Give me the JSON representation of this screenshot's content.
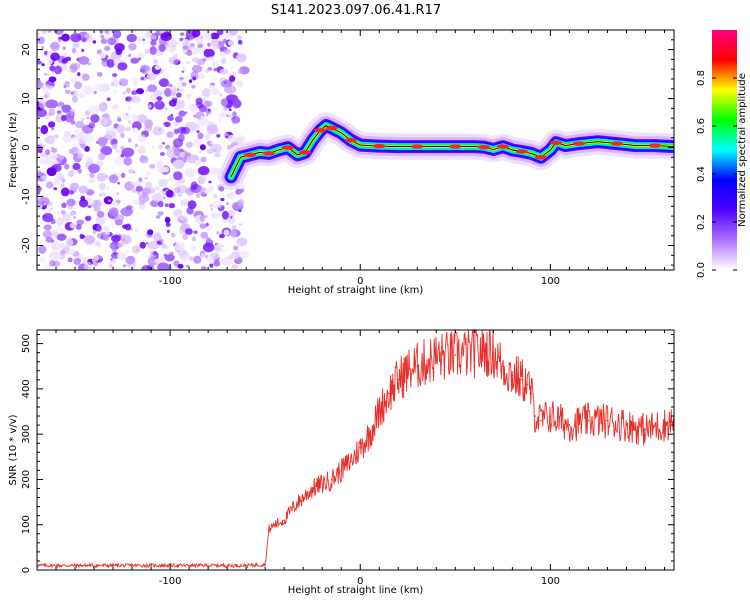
{
  "title": "S141.2023.097.06.41.R17",
  "chart_data": [
    {
      "type": "heatmap",
      "xlabel": "Height of straight line (km)",
      "ylabel": "Frequency (Hz)",
      "xlim": [
        -170,
        165
      ],
      "ylim": [
        -25,
        24
      ],
      "x_ticks": [
        -100,
        0,
        100
      ],
      "y_ticks": [
        -20,
        -10,
        0,
        10,
        20
      ],
      "colorbar": {
        "label": "Normalized spectral amplitude",
        "ticks": [
          "0.0",
          "0.2",
          "0.4",
          "0.6",
          "0.8"
        ],
        "range": [
          0,
          1
        ],
        "colors": [
          "#ffffff",
          "#b070ff",
          "#5000ff",
          "#0000ff",
          "#00ffff",
          "#00ff00",
          "#ffff00",
          "#ff0000",
          "#ff0080"
        ]
      },
      "noise_region": {
        "x_range": [
          -170,
          -63
        ]
      },
      "ridge": {
        "x": [
          -68,
          -63,
          -58,
          -53,
          -48,
          -43,
          -38,
          -33,
          -29,
          -25,
          -21,
          -18,
          -15,
          -10,
          -5,
          0,
          10,
          20,
          30,
          40,
          50,
          60,
          65,
          70,
          75,
          80,
          85,
          90,
          95,
          100,
          103,
          108,
          115,
          125,
          135,
          145,
          155,
          165
        ],
        "y": [
          -6,
          -2,
          -1.5,
          -1,
          -1.2,
          -0.5,
          0,
          -1.5,
          -1,
          1.5,
          3.5,
          4.5,
          4,
          3,
          1.5,
          0.5,
          0.3,
          0.2,
          0.2,
          0.2,
          0.2,
          0.2,
          0.1,
          -0.4,
          0.2,
          -0.5,
          -0.8,
          -1.2,
          -2,
          -0.5,
          1,
          0.4,
          0.8,
          1.2,
          0.8,
          0.4,
          0.4,
          0.2
        ]
      }
    },
    {
      "type": "line",
      "xlabel": "Height of straight line (km)",
      "ylabel": "SNR (10 * v/v)",
      "xlim": [
        -170,
        165
      ],
      "ylim": [
        0,
        530
      ],
      "x_ticks": [
        -100,
        0,
        100
      ],
      "y_ticks": [
        0,
        100,
        200,
        300,
        400,
        500
      ],
      "color": "#e8302a",
      "series": [
        {
          "x": [
            -170,
            -150,
            -130,
            -110,
            -90,
            -70,
            -60,
            -50,
            -48,
            -45,
            -40,
            -35,
            -30,
            -25,
            -20,
            -15,
            -10,
            -5,
            0,
            5,
            10,
            15,
            20,
            25,
            30,
            40,
            50,
            60,
            65,
            70,
            75,
            80,
            85,
            88,
            90,
            92,
            95,
            100,
            110,
            120,
            130,
            140,
            150,
            160,
            165
          ],
          "y": [
            10,
            10,
            10,
            10,
            10,
            10,
            10,
            12,
            90,
            100,
            110,
            140,
            160,
            180,
            190,
            200,
            220,
            240,
            270,
            300,
            350,
            390,
            420,
            440,
            450,
            470,
            475,
            480,
            485,
            480,
            450,
            430,
            420,
            410,
            390,
            340,
            330,
            340,
            320,
            330,
            330,
            320,
            310,
            320,
            330
          ]
        }
      ]
    }
  ]
}
